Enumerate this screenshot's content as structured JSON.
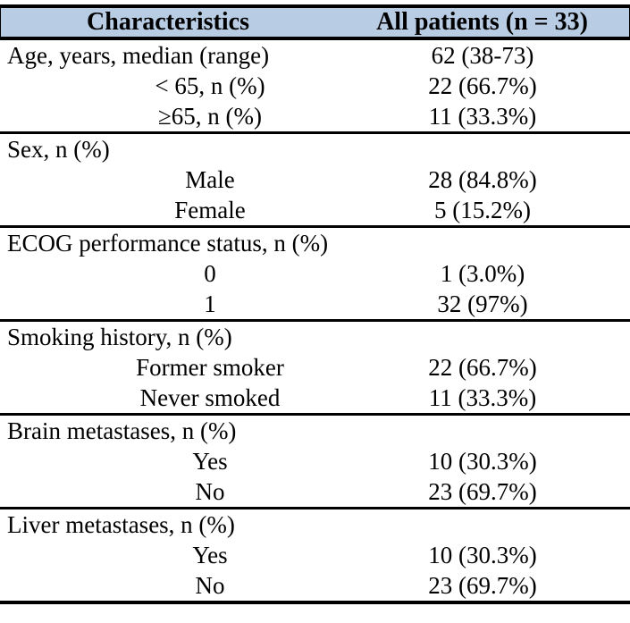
{
  "table": {
    "columns": [
      {
        "label": "Characteristics"
      },
      {
        "label": "All patients (n = 33)"
      }
    ],
    "rows": [
      {
        "label": "Age, years, median (range)",
        "value": "62 (38-73)",
        "indent": false,
        "section_end": false
      },
      {
        "label": "< 65, n (%)",
        "value": "22 (66.7%)",
        "indent": true,
        "section_end": false
      },
      {
        "label": "≥65, n (%)",
        "value": "11 (33.3%)",
        "indent": true,
        "section_end": true
      },
      {
        "label": "Sex, n (%)",
        "value": "",
        "indent": false,
        "section_end": false
      },
      {
        "label": "Male",
        "value": "28 (84.8%)",
        "indent": true,
        "section_end": false
      },
      {
        "label": "Female",
        "value": "5 (15.2%)",
        "indent": true,
        "section_end": true
      },
      {
        "label": "ECOG performance status, n (%)",
        "value": "",
        "indent": false,
        "section_end": false
      },
      {
        "label": "0",
        "value": "1 (3.0%)",
        "indent": true,
        "section_end": false
      },
      {
        "label": "1",
        "value": "32 (97%)",
        "indent": true,
        "section_end": true
      },
      {
        "label": "Smoking history, n (%)",
        "value": "",
        "indent": false,
        "section_end": false
      },
      {
        "label": "Former smoker",
        "value": "22 (66.7%)",
        "indent": true,
        "section_end": false
      },
      {
        "label": "Never smoked",
        "value": "11 (33.3%)",
        "indent": true,
        "section_end": true
      },
      {
        "label": "Brain metastases, n (%)",
        "value": "",
        "indent": false,
        "section_end": false
      },
      {
        "label": "Yes",
        "value": "10 (30.3%)",
        "indent": true,
        "section_end": false
      },
      {
        "label": "No",
        "value": "23 (69.7%)",
        "indent": true,
        "section_end": true
      },
      {
        "label": "Liver metastases, n (%)",
        "value": "",
        "indent": false,
        "section_end": false
      },
      {
        "label": "Yes",
        "value": "10 (30.3%)",
        "indent": true,
        "section_end": false
      },
      {
        "label": "No",
        "value": "23 (69.7%)",
        "indent": true,
        "section_end": true
      }
    ],
    "colors": {
      "header_bg": "#B8CCE4",
      "border": "#000000",
      "text": "#000000",
      "background": "#FFFFFF"
    }
  }
}
